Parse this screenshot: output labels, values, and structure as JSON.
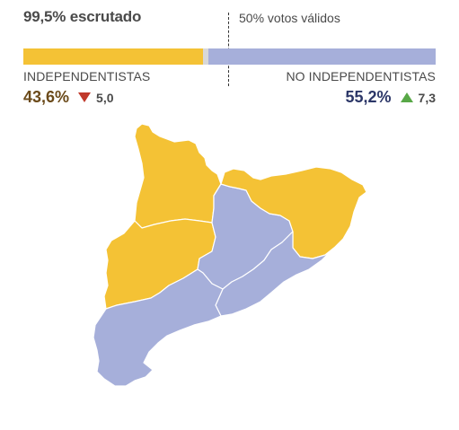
{
  "header": {
    "scrutiny": "99,5% escrutado",
    "half_label": "50% votos válidos"
  },
  "bar": {
    "independentistas_share": 0.436,
    "no_independentistas_share": 0.552
  },
  "independentistas": {
    "label": "INDEPENDENTISTAS",
    "percent": "43,6%",
    "trend": "down",
    "change": "5,0",
    "color": "#f4c235",
    "text_color": "#6b4a1a"
  },
  "no_independentistas": {
    "label": "NO INDEPENDENTISTAS",
    "percent": "55,2%",
    "trend": "up",
    "change": "7,3",
    "color": "#a6afda",
    "text_color": "#2c3768"
  },
  "map": {
    "regions": [
      {
        "name": "lleida-north",
        "winner": "independentistas"
      },
      {
        "name": "lleida-south",
        "winner": "independentistas"
      },
      {
        "name": "girona",
        "winner": "independentistas"
      },
      {
        "name": "barcelona",
        "winner": "no_independentistas"
      },
      {
        "name": "central-catalonia",
        "winner": "no_independentistas"
      },
      {
        "name": "tarragona",
        "winner": "no_independentistas"
      }
    ]
  }
}
